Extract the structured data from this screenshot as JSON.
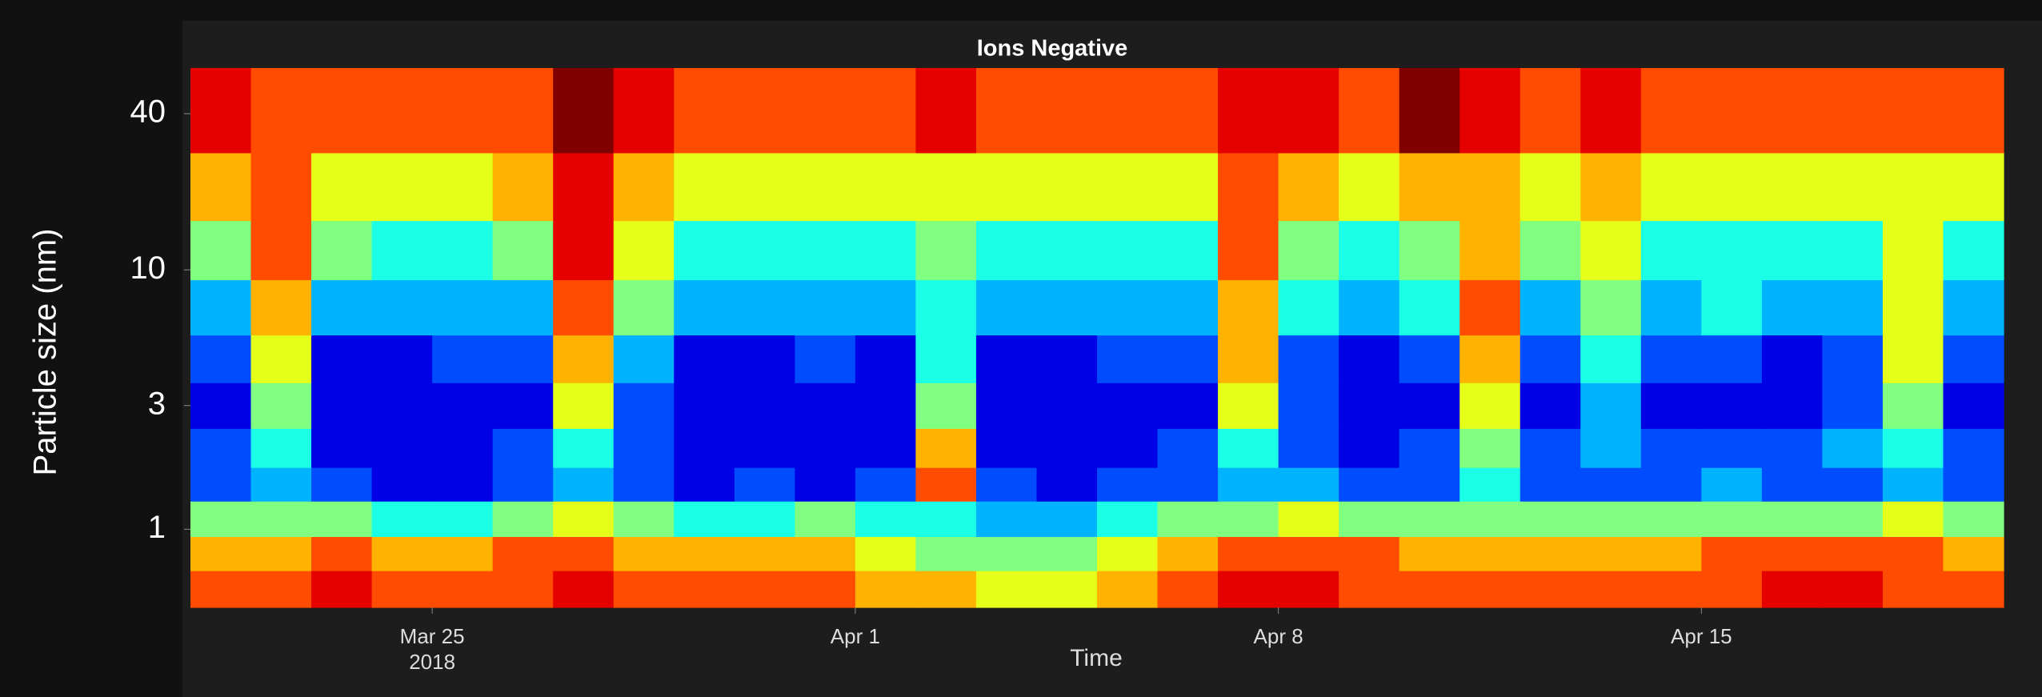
{
  "chart_data": {
    "type": "heatmap",
    "title": "Ions Negative",
    "xlabel": "Time",
    "ylabel": "Particle size (nm)",
    "x": [
      "2018-03-21",
      "2018-03-22",
      "2018-03-23",
      "2018-03-24",
      "2018-03-25",
      "2018-03-26",
      "2018-03-27",
      "2018-03-28",
      "2018-03-29",
      "2018-03-30",
      "2018-03-31",
      "2018-04-01",
      "2018-04-02",
      "2018-04-03",
      "2018-04-04",
      "2018-04-05",
      "2018-04-06",
      "2018-04-07",
      "2018-04-08",
      "2018-04-09",
      "2018-04-10",
      "2018-04-11",
      "2018-04-12",
      "2018-04-13",
      "2018-04-14",
      "2018-04-15",
      "2018-04-16",
      "2018-04-17",
      "2018-04-18",
      "2018-04-19"
    ],
    "y": [
      0.6,
      0.8,
      1.1,
      1.5,
      2,
      3,
      4.5,
      7,
      12,
      20,
      40
    ],
    "z": [
      [
        8,
        8,
        9,
        8,
        8,
        8,
        9,
        8,
        8,
        8,
        8,
        7,
        7,
        6,
        6,
        7,
        8,
        9,
        9,
        8,
        8,
        8,
        8,
        8,
        8,
        8,
        9,
        9,
        8,
        8
      ],
      [
        7,
        7,
        8,
        7,
        7,
        8,
        8,
        7,
        7,
        7,
        7,
        6,
        5,
        5,
        5,
        6,
        7,
        8,
        8,
        8,
        7,
        7,
        7,
        7,
        7,
        8,
        8,
        8,
        8,
        7
      ],
      [
        5,
        5,
        5,
        4,
        4,
        5,
        6,
        5,
        4,
        4,
        5,
        4,
        4,
        3,
        3,
        4,
        5,
        5,
        6,
        5,
        5,
        5,
        5,
        5,
        5,
        5,
        5,
        5,
        6,
        5
      ],
      [
        2,
        3,
        2,
        1,
        1,
        2,
        3,
        2,
        1,
        2,
        1,
        2,
        8,
        2,
        1,
        2,
        2,
        3,
        3,
        2,
        2,
        4,
        2,
        2,
        2,
        3,
        2,
        2,
        3,
        2
      ],
      [
        2,
        4,
        1,
        1,
        1,
        2,
        4,
        2,
        1,
        1,
        1,
        1,
        7,
        1,
        1,
        1,
        2,
        4,
        2,
        1,
        2,
        5,
        2,
        3,
        2,
        2,
        2,
        3,
        4,
        2
      ],
      [
        1,
        5,
        1,
        1,
        1,
        1,
        6,
        2,
        1,
        1,
        1,
        1,
        5,
        1,
        1,
        1,
        1,
        6,
        2,
        1,
        1,
        6,
        1,
        3,
        1,
        1,
        1,
        2,
        5,
        1
      ],
      [
        2,
        6,
        1,
        1,
        2,
        2,
        7,
        3,
        1,
        1,
        2,
        1,
        4,
        1,
        1,
        2,
        2,
        7,
        2,
        1,
        2,
        7,
        2,
        4,
        2,
        2,
        1,
        2,
        6,
        2
      ],
      [
        3,
        7,
        3,
        3,
        3,
        3,
        8,
        5,
        3,
        3,
        3,
        3,
        4,
        3,
        3,
        3,
        3,
        7,
        4,
        3,
        4,
        8,
        3,
        5,
        3,
        4,
        3,
        3,
        6,
        3
      ],
      [
        5,
        8,
        5,
        4,
        4,
        5,
        9,
        6,
        4,
        4,
        4,
        4,
        5,
        4,
        4,
        4,
        4,
        8,
        5,
        4,
        5,
        7,
        5,
        6,
        4,
        4,
        4,
        4,
        6,
        4
      ],
      [
        7,
        8,
        6,
        6,
        6,
        7,
        9,
        7,
        6,
        6,
        6,
        6,
        6,
        6,
        6,
        6,
        6,
        8,
        7,
        6,
        7,
        7,
        6,
        7,
        6,
        6,
        6,
        6,
        6,
        6
      ],
      [
        9,
        8,
        8,
        8,
        8,
        8,
        10,
        9,
        8,
        8,
        8,
        8,
        9,
        8,
        8,
        8,
        8,
        9,
        9,
        8,
        10,
        9,
        8,
        9,
        8,
        8,
        8,
        8,
        8,
        8
      ]
    ],
    "zlim": [
      0,
      10
    ],
    "colorscale": "jet",
    "xlim": [
      "2018-03-21",
      "2018-04-20"
    ],
    "xticks": [
      {
        "value": "2018-03-25",
        "label": "Mar 25\n2018"
      },
      {
        "value": "2018-04-01",
        "label": "Apr 1"
      },
      {
        "value": "2018-04-08",
        "label": "Apr 8"
      },
      {
        "value": "2018-04-15",
        "label": "Apr 15"
      }
    ],
    "ylim": [
      0.5,
      60
    ],
    "yscale": "log",
    "yticks": [
      1,
      3,
      10,
      40
    ]
  }
}
